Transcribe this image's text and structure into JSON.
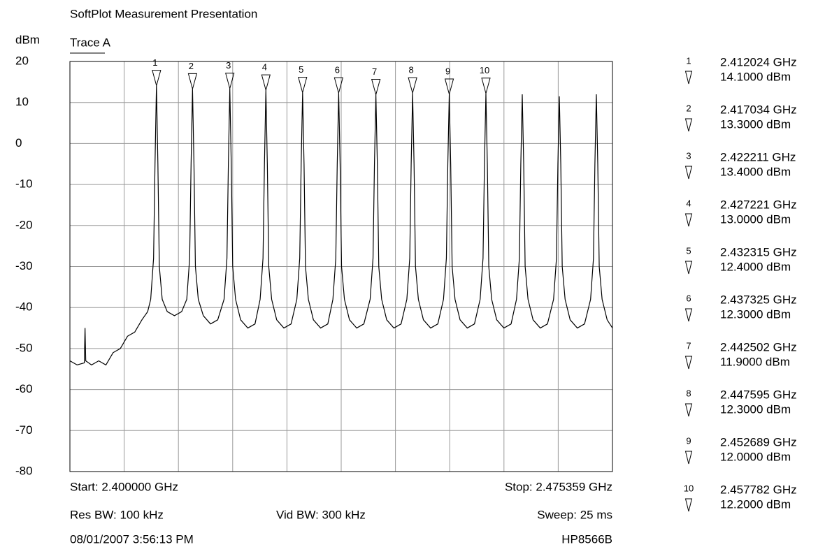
{
  "chart_data": {
    "type": "line",
    "title": "SoftPlot Measurement Presentation",
    "y_unit_label": "dBm",
    "xlim": [
      2.4,
      2.475359
    ],
    "ylim": [
      -80,
      20
    ],
    "yticks": [
      20,
      10,
      0,
      -10,
      -20,
      -30,
      -40,
      -50,
      -60,
      -70,
      -80
    ],
    "grid": true,
    "series": [
      {
        "name": "Trace A",
        "color": "#000000",
        "x": [
          2.4,
          2.401,
          2.402,
          2.4021,
          2.4022,
          2.403,
          2.404,
          2.405,
          2.406,
          2.407,
          2.408,
          2.409,
          2.41,
          2.4108,
          2.41122,
          2.41162,
          2.41182,
          2.41202,
          2.41222,
          2.41242,
          2.41282,
          2.41352,
          2.41452,
          2.41552,
          2.41623,
          2.41663,
          2.41683,
          2.41703,
          2.41723,
          2.41743,
          2.41783,
          2.41853,
          2.41953,
          2.42053,
          2.42141,
          2.42181,
          2.42201,
          2.42221,
          2.42241,
          2.42261,
          2.42301,
          2.42371,
          2.42471,
          2.42571,
          2.42642,
          2.42682,
          2.42702,
          2.42722,
          2.42742,
          2.42762,
          2.42802,
          2.42872,
          2.42972,
          2.43072,
          2.43152,
          2.43192,
          2.43212,
          2.43232,
          2.43252,
          2.43272,
          2.43312,
          2.43382,
          2.43482,
          2.43582,
          2.43653,
          2.43693,
          2.43713,
          2.43733,
          2.43753,
          2.43773,
          2.43813,
          2.43883,
          2.43983,
          2.44083,
          2.4417,
          2.4421,
          2.4423,
          2.4425,
          2.4427,
          2.4429,
          2.4433,
          2.444,
          2.445,
          2.446,
          2.4468,
          2.4472,
          2.4474,
          2.4476,
          2.4478,
          2.448,
          2.4484,
          2.4491,
          2.4501,
          2.4511,
          2.45189,
          2.45229,
          2.45249,
          2.45269,
          2.45289,
          2.45309,
          2.45349,
          2.45419,
          2.45519,
          2.45619,
          2.45698,
          2.45738,
          2.45758,
          2.45778,
          2.45798,
          2.45818,
          2.45858,
          2.45928,
          2.46028,
          2.46128,
          2.46203,
          2.46243,
          2.46263,
          2.46283,
          2.46303,
          2.46323,
          2.46363,
          2.46433,
          2.46533,
          2.46633,
          2.46718,
          2.46758,
          2.46778,
          2.46798,
          2.46818,
          2.46838,
          2.46878,
          2.46948,
          2.47048,
          2.47148,
          2.47232,
          2.47272,
          2.47292,
          2.47312,
          2.47332,
          2.47352,
          2.47392,
          2.47462,
          2.475359
        ],
        "values": [
          -53,
          -54,
          -53.5,
          -45,
          -53,
          -54,
          -53,
          -54,
          -51,
          -50,
          -47,
          -46,
          -43,
          -41,
          -38,
          -28,
          -5,
          14.1,
          -5,
          -30,
          -38,
          -41,
          -42,
          -41,
          -38,
          -28,
          -5,
          13.3,
          -5,
          -30,
          -38,
          -42,
          -44,
          -43,
          -38,
          -28,
          -5,
          13.4,
          -5,
          -30,
          -38,
          -43,
          -45,
          -44,
          -38,
          -28,
          -5,
          13,
          -5,
          -30,
          -38,
          -43,
          -45,
          -44,
          -38,
          -28,
          -5,
          12.4,
          -5,
          -30,
          -38,
          -43,
          -45,
          -44,
          -38,
          -28,
          -5,
          12.3,
          -5,
          -30,
          -38,
          -43,
          -45,
          -44,
          -38,
          -28,
          -5,
          11.9,
          -5,
          -30,
          -38,
          -43,
          -45,
          -44,
          -38,
          -28,
          -5,
          12.3,
          -5,
          -30,
          -38,
          -43,
          -45,
          -44,
          -38,
          -28,
          -5,
          12,
          -5,
          -30,
          -38,
          -43,
          -45,
          -44,
          -38,
          -28,
          -5,
          12.2,
          -5,
          -30,
          -38,
          -43,
          -45,
          -44,
          -38,
          -28,
          -5,
          12,
          -5,
          -30,
          -38,
          -43,
          -45,
          -44,
          -38,
          -28,
          -5,
          11.5,
          -5,
          -30,
          -38,
          -43,
          -45,
          -44,
          -38,
          -28,
          -5,
          12,
          -5,
          -30,
          -38,
          -43,
          -45
        ]
      }
    ],
    "markers": [
      {
        "label": "1",
        "x": 2.412024,
        "y": 14.1,
        "x_label": "2.412024 GHz",
        "y_label": "14.1000 dBm"
      },
      {
        "label": "2",
        "x": 2.417034,
        "y": 13.3,
        "x_label": "2.417034 GHz",
        "y_label": "13.3000 dBm"
      },
      {
        "label": "3",
        "x": 2.422211,
        "y": 13.4,
        "x_label": "2.422211 GHz",
        "y_label": "13.4000 dBm"
      },
      {
        "label": "4",
        "x": 2.427221,
        "y": 13.0,
        "x_label": "2.427221 GHz",
        "y_label": "13.0000 dBm"
      },
      {
        "label": "5",
        "x": 2.432315,
        "y": 12.4,
        "x_label": "2.432315 GHz",
        "y_label": "12.4000 dBm"
      },
      {
        "label": "6",
        "x": 2.437325,
        "y": 12.3,
        "x_label": "2.437325 GHz",
        "y_label": "12.3000 dBm"
      },
      {
        "label": "7",
        "x": 2.442502,
        "y": 11.9,
        "x_label": "2.442502 GHz",
        "y_label": "11.9000 dBm"
      },
      {
        "label": "8",
        "x": 2.447595,
        "y": 12.3,
        "x_label": "2.447595 GHz",
        "y_label": "12.3000 dBm"
      },
      {
        "label": "9",
        "x": 2.452689,
        "y": 12.0,
        "x_label": "2.452689 GHz",
        "y_label": "12.0000 dBm"
      },
      {
        "label": "10",
        "x": 2.457782,
        "y": 12.2,
        "x_label": "2.457782 GHz",
        "y_label": "12.2000 dBm"
      }
    ],
    "footer": [
      "Start: 2.400000 GHz",
      "Stop: 2.475359 GHz",
      "Res BW: 100 kHz",
      "Vid BW: 300 kHz",
      "Sweep: 25 ms",
      "08/01/2007 3:56:13 PM",
      "HP8566B"
    ]
  }
}
